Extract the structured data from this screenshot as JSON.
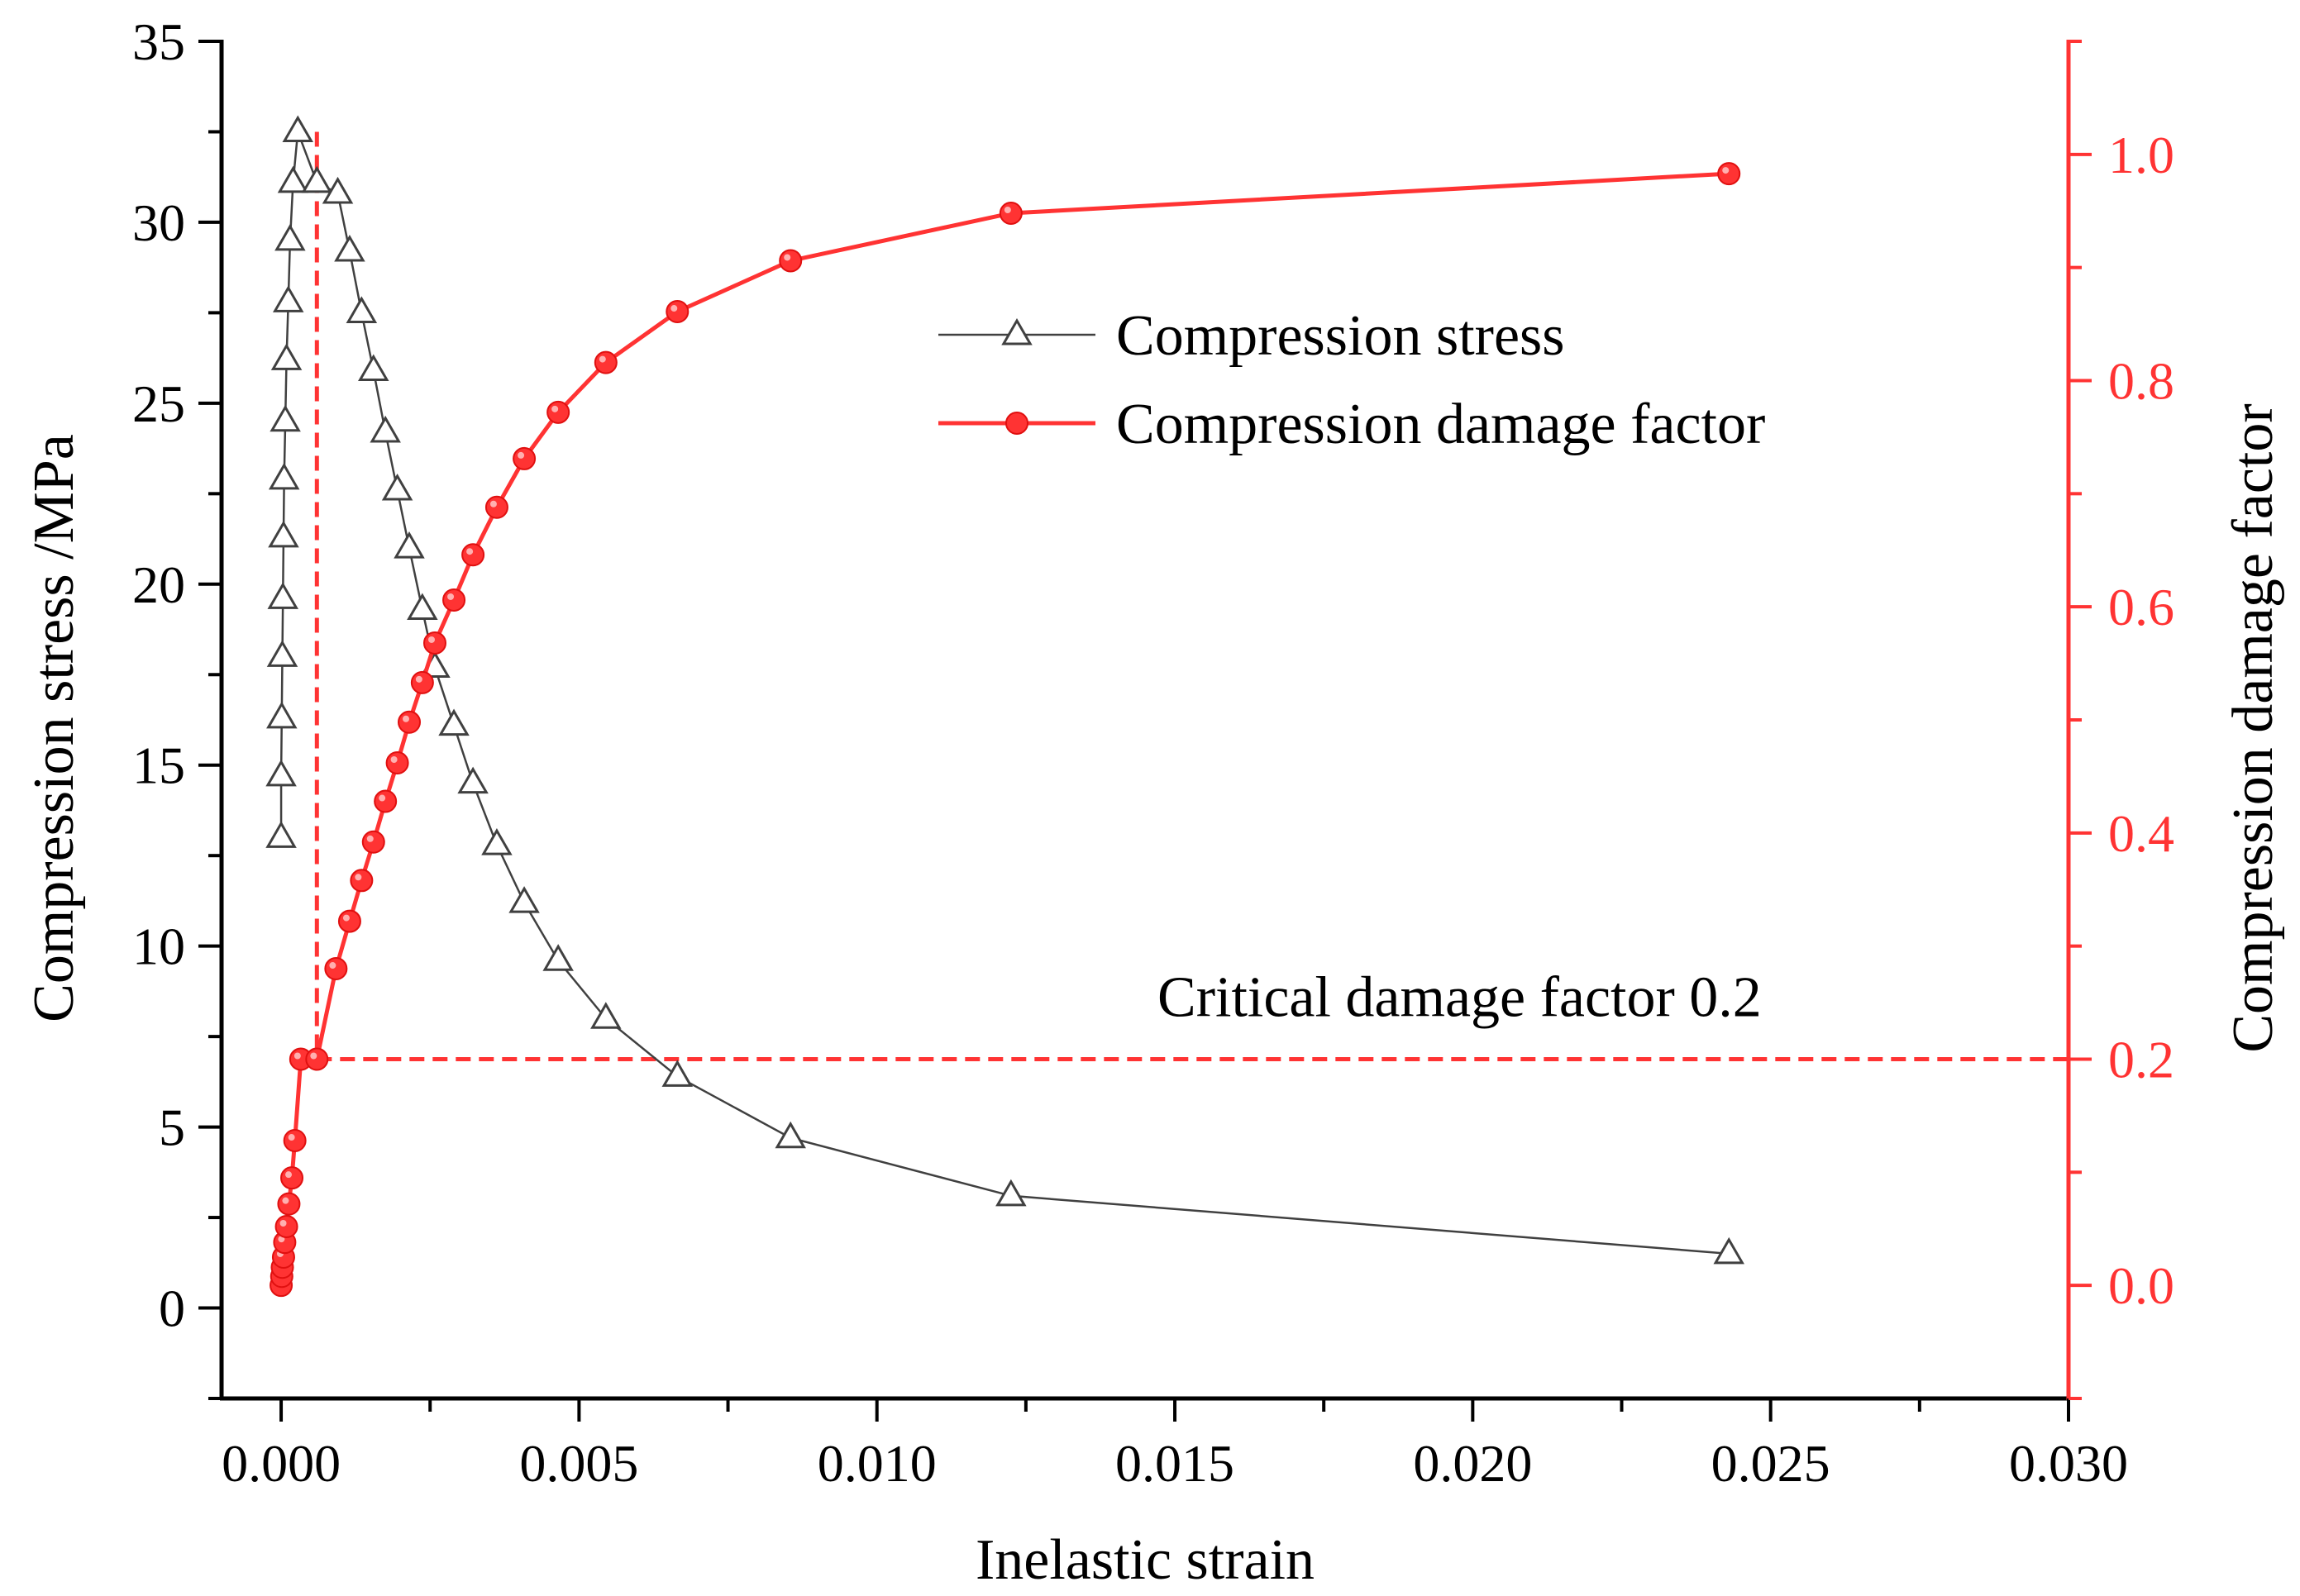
{
  "chart_data": {
    "type": "line",
    "xlabel": "Inelastic strain",
    "ylabel": "Compression stress /MPa",
    "y2label": "Compression damage factor",
    "xlim": [
      -0.001,
      0.03
    ],
    "ylim": [
      -2.5,
      35
    ],
    "y2lim": [
      -0.1,
      1.1
    ],
    "x_ticks": [
      "0.000",
      "0.005",
      "0.010",
      "0.015",
      "0.020",
      "0.025",
      "0.030"
    ],
    "x_tick_values": [
      0,
      0.005,
      0.01,
      0.015,
      0.02,
      0.025,
      0.03
    ],
    "y_ticks": [
      "0",
      "5",
      "10",
      "15",
      "20",
      "25",
      "30",
      "35"
    ],
    "y_tick_values": [
      0,
      5,
      10,
      15,
      20,
      25,
      30,
      35
    ],
    "y2_ticks": [
      "0.0",
      "0.2",
      "0.4",
      "0.6",
      "0.8",
      "1.0"
    ],
    "y2_tick_values": [
      0,
      0.2,
      0.4,
      0.6,
      0.8,
      1.0
    ],
    "colors": {
      "stress": "#404040",
      "damage": "#ff3333",
      "axis_right": "#ff3333",
      "axis_left": "#000000"
    },
    "series": [
      {
        "name": "Compression stress",
        "axis": "left",
        "marker": "triangle",
        "x": [
          0.0,
          0.0,
          1e-05,
          2e-05,
          3e-05,
          4e-05,
          5e-05,
          7e-05,
          9e-05,
          0.00012,
          0.00015,
          0.0002,
          0.00028,
          0.0006,
          0.00095,
          0.00115,
          0.00135,
          0.00155,
          0.00175,
          0.00195,
          0.00215,
          0.00237,
          0.00258,
          0.0029,
          0.00322,
          0.00362,
          0.00408,
          0.00465,
          0.00545,
          0.00665,
          0.00855,
          0.01225,
          0.0243
        ],
        "y": [
          13.0,
          14.7,
          16.3,
          18.0,
          19.6,
          21.3,
          22.9,
          24.5,
          26.2,
          27.8,
          29.5,
          31.1,
          32.5,
          31.1,
          30.8,
          29.2,
          27.5,
          25.9,
          24.2,
          22.6,
          21.0,
          19.3,
          17.7,
          16.1,
          14.5,
          12.8,
          11.2,
          9.6,
          8.0,
          6.4,
          4.7,
          3.1,
          1.5
        ]
      },
      {
        "name": "Compression damage factor",
        "axis": "right",
        "marker": "circle",
        "x": [
          0.0,
          1e-05,
          2e-05,
          4e-05,
          6e-05,
          9e-05,
          0.00013,
          0.00018,
          0.00023,
          0.00033,
          0.0006,
          0.00092,
          0.00115,
          0.00135,
          0.00155,
          0.00175,
          0.00195,
          0.00215,
          0.00237,
          0.00258,
          0.0029,
          0.00322,
          0.00362,
          0.00408,
          0.00465,
          0.00545,
          0.00665,
          0.00855,
          0.01225,
          0.0243
        ],
        "y": [
          0.0,
          0.008,
          0.016,
          0.025,
          0.038,
          0.052,
          0.072,
          0.095,
          0.128,
          0.2,
          0.2,
          0.28,
          0.322,
          0.358,
          0.392,
          0.428,
          0.462,
          0.498,
          0.533,
          0.568,
          0.606,
          0.646,
          0.688,
          0.731,
          0.772,
          0.816,
          0.861,
          0.906,
          0.948,
          0.983
        ]
      }
    ],
    "annotation": {
      "text": "Critical damage factor 0.2",
      "y2_value": 0.2,
      "peak_x": 0.0006
    },
    "legend": {
      "position": "top-right"
    }
  }
}
